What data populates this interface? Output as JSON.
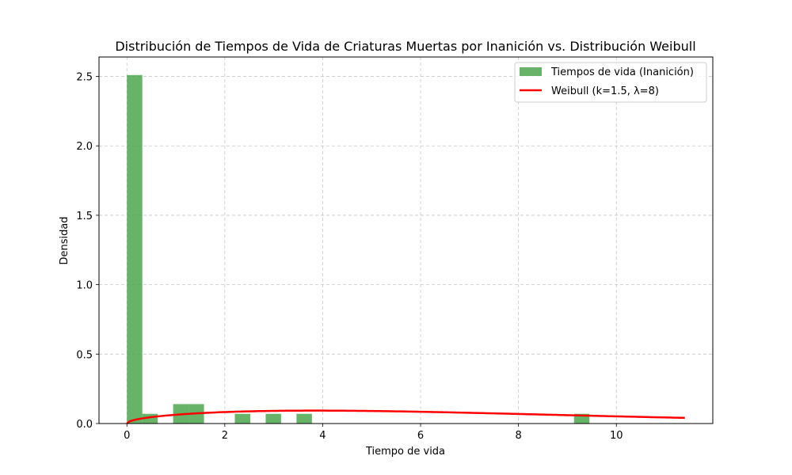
{
  "chart_data": {
    "type": "bar",
    "title": "Distribución de Tiempos de Vida de Criaturas Muertas por Inanición vs. Distribución Weibull",
    "xlabel": "Tiempo de vida",
    "ylabel": "Densidad",
    "xlim": [
      -0.57,
      11.97
    ],
    "ylim": [
      0,
      2.64
    ],
    "xticks": [
      0,
      2,
      4,
      6,
      8,
      10
    ],
    "xtick_labels": [
      "0",
      "2",
      "4",
      "6",
      "8",
      "10"
    ],
    "yticks": [
      0.0,
      0.5,
      1.0,
      1.5,
      2.0,
      2.5
    ],
    "ytick_labels": [
      "0.0",
      "0.5",
      "1.0",
      "1.5",
      "2.0",
      "2.5"
    ],
    "grid": true,
    "legend_position": "upper right",
    "series": [
      {
        "name": "Tiempos de vida (Inanición)",
        "kind": "histogram",
        "color": "#4ca64c",
        "bin_width": 0.315,
        "bins": [
          {
            "x0": 0.0,
            "value": 2.51
          },
          {
            "x0": 0.315,
            "value": 0.07
          },
          {
            "x0": 0.945,
            "value": 0.14
          },
          {
            "x0": 1.26,
            "value": 0.14
          },
          {
            "x0": 2.205,
            "value": 0.07
          },
          {
            "x0": 2.835,
            "value": 0.07
          },
          {
            "x0": 3.465,
            "value": 0.07
          },
          {
            "x0": 9.135,
            "value": 0.07
          }
        ]
      },
      {
        "name": "Weibull (k=1.5, λ=8)",
        "kind": "line",
        "color": "#ff0000",
        "k": 1.5,
        "lambda": 8,
        "x_range": [
          0,
          11.4
        ]
      }
    ]
  }
}
